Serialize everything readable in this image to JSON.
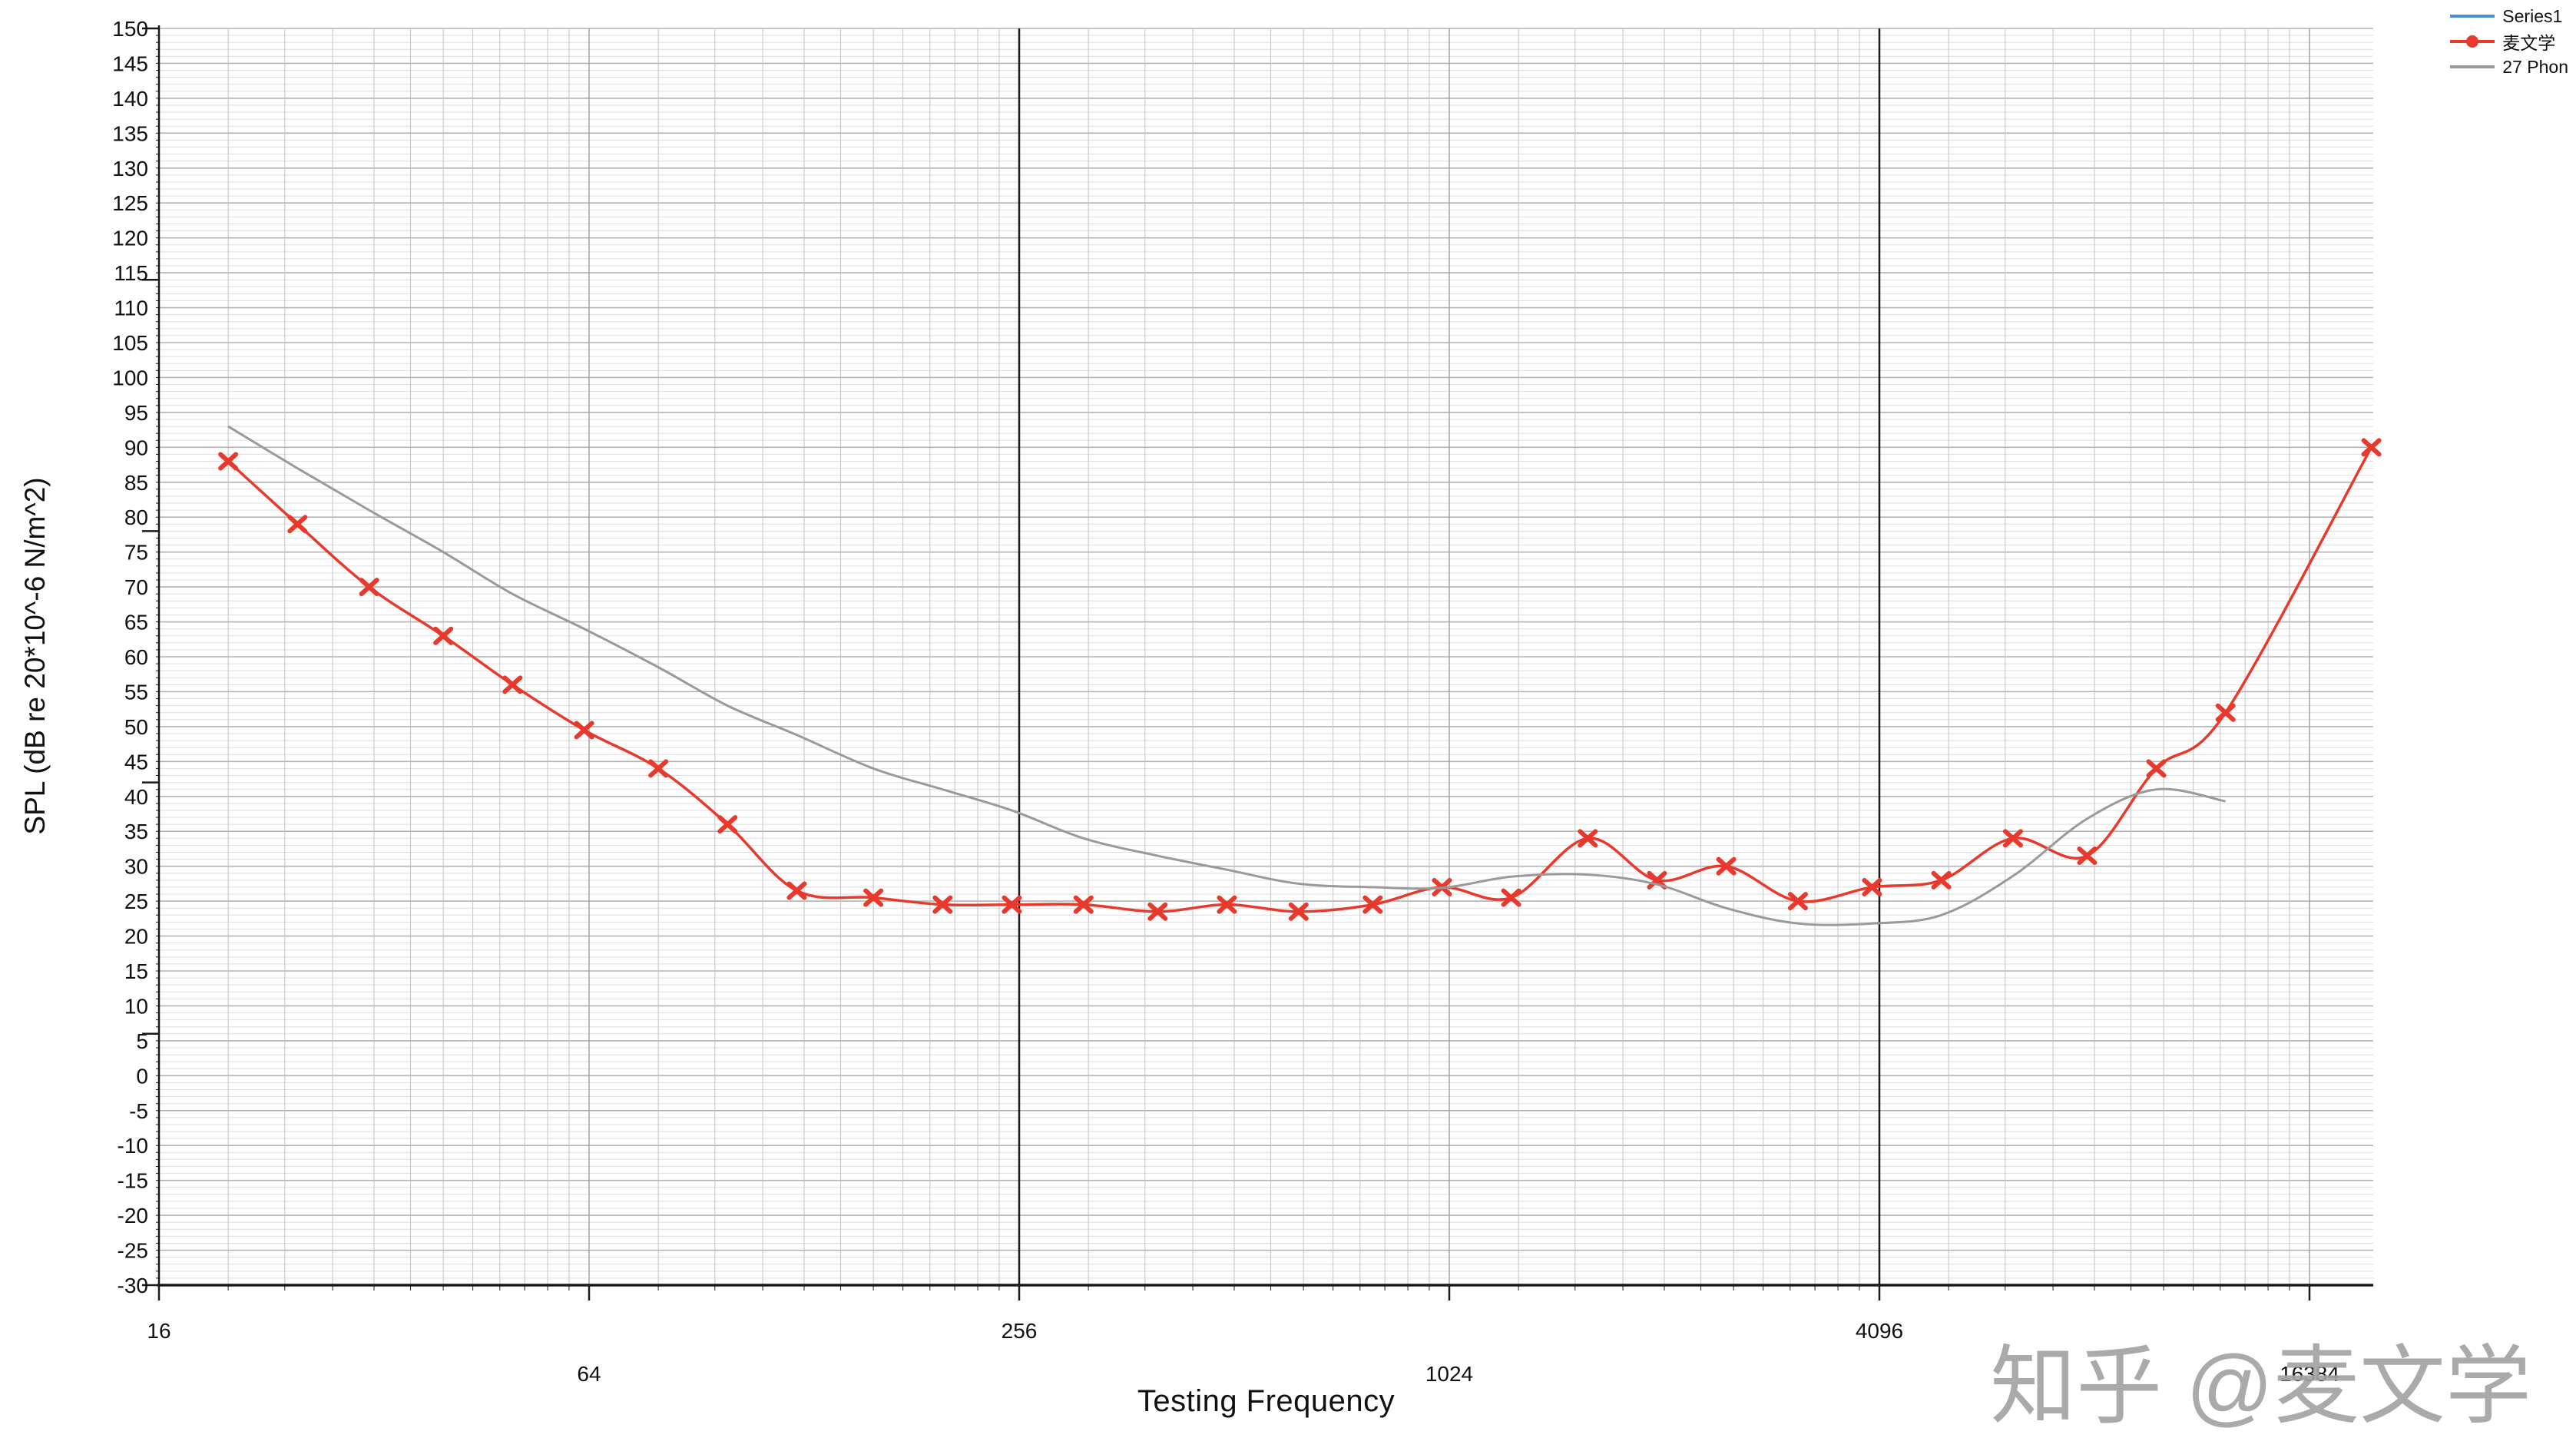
{
  "watermark": "知乎 @麦文学",
  "legend": {
    "items": [
      {
        "label": "Series1",
        "color": "#4a90d0",
        "marker": "line"
      },
      {
        "label": "麦文学",
        "color": "#e8392c",
        "marker": "line-dot"
      },
      {
        "label": "27 Phon",
        "color": "#9a9a9a",
        "marker": "line"
      }
    ]
  },
  "colors": {
    "grid_minor": "#dedede",
    "grid_5db": "#b3b3b3",
    "grid_x_minor": "#c2c2c2",
    "grid_x_major": "#9e9e9e",
    "grid_x_emphasis": "#1c1c1c",
    "axis": "#1a1a1a",
    "tick_text": "#111111"
  },
  "chart_data": {
    "type": "line",
    "title": "",
    "xlabel": "Testing Frequency",
    "ylabel": "SPL (dB re 20*10^-6 N/m^2)",
    "xscale": "log2",
    "xlim": [
      16,
      21000
    ],
    "ylim": [
      -30,
      150
    ],
    "grid": true,
    "legend_position": "top-right",
    "x_major_ticks": [
      16,
      64,
      256,
      1024,
      4096,
      16384
    ],
    "x_label_rows": [
      1,
      2,
      1,
      2,
      1,
      2
    ],
    "emphasized_x_gridlines": [
      256,
      4096
    ],
    "y_label_step": 5,
    "y_minor_step": 1,
    "y_major_tick_values": [
      150,
      114,
      78,
      42,
      6,
      -30
    ],
    "series": [
      {
        "name": "Series1",
        "color": "#4a90d0",
        "line_width": 3,
        "marker": "none",
        "x": [],
        "y": []
      },
      {
        "name": "麦文学",
        "color": "#e8392c",
        "line_width": 3.5,
        "marker": "x",
        "x": [
          20,
          25,
          31.5,
          40,
          50,
          63,
          80,
          100,
          125,
          160,
          200,
          250,
          315,
          400,
          500,
          630,
          800,
          1000,
          1250,
          1600,
          2000,
          2500,
          3150,
          4000,
          5000,
          6300,
          8000,
          10000,
          12500,
          20000
        ],
        "y": [
          88,
          79,
          70,
          63,
          56,
          49.5,
          44,
          36,
          26.5,
          25.5,
          24.5,
          24.5,
          24.5,
          23.5,
          24.5,
          23.5,
          24.5,
          27,
          25.5,
          34,
          28,
          30,
          25,
          27,
          28,
          34,
          31.5,
          44,
          52,
          90
        ]
      },
      {
        "name": "27 Phon",
        "color": "#9a9a9a",
        "line_width": 3,
        "marker": "none",
        "x": [
          20,
          25,
          31.5,
          40,
          50,
          63,
          80,
          100,
          125,
          160,
          200,
          250,
          315,
          400,
          500,
          630,
          800,
          1000,
          1250,
          1600,
          2000,
          2500,
          3150,
          4000,
          5000,
          6300,
          8000,
          10000,
          12500
        ],
        "y": [
          93,
          87,
          81,
          75,
          69,
          64,
          58.5,
          53,
          48.8,
          44,
          41,
          38,
          34,
          31.5,
          29.5,
          27.5,
          27,
          26.9,
          28.5,
          28.8,
          27.4,
          24,
          21.8,
          21.8,
          23,
          28.6,
          36.8,
          41,
          39.3
        ]
      }
    ]
  }
}
